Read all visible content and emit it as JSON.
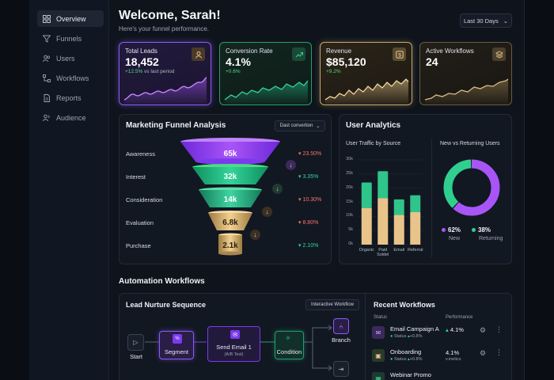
{
  "sidebar": {
    "items": [
      {
        "label": "Overview",
        "icon": "grid-icon"
      },
      {
        "label": "Funnels",
        "icon": "funnel-icon"
      },
      {
        "label": "Users",
        "icon": "users-icon"
      },
      {
        "label": "Workflows",
        "icon": "workflow-icon"
      },
      {
        "label": "Reports",
        "icon": "report-icon"
      },
      {
        "label": "Audience",
        "icon": "audience-icon"
      }
    ]
  },
  "header": {
    "title": "Welcome, Sarah!",
    "subtitle": "Here's your funnel performance.",
    "date_range": "Last 30 Days"
  },
  "kpis": [
    {
      "label": "Total Leads",
      "value": "18,452",
      "delta": "+12.5%",
      "delta_suffix": "vs last period",
      "icon": "user-icon",
      "color": "#8b5cf6"
    },
    {
      "label": "Conversion Rate",
      "value": "4.1%",
      "delta": "+0.6%",
      "delta_suffix": "",
      "icon": "trend-up-icon",
      "color": "#22c58b"
    },
    {
      "label": "Revenue",
      "value": "$85,120",
      "delta": "+9.2%",
      "delta_suffix": "",
      "icon": "dollar-icon",
      "color": "#d8b878"
    },
    {
      "label": "Active Workflows",
      "value": "24",
      "delta": "",
      "delta_suffix": "",
      "icon": "layers-icon",
      "color": "#c9a86a"
    }
  ],
  "funnel": {
    "title": "Marketing Funnel Analysis",
    "dropdown": "Dast convertion",
    "stages": [
      {
        "label": "Awareness",
        "value": "65k",
        "change": "23.50%",
        "direction": "down"
      },
      {
        "label": "Interest",
        "value": "32k",
        "change": "3.35%",
        "direction": "up"
      },
      {
        "label": "Consideration",
        "value": "14k",
        "change": "10.30%",
        "direction": "down"
      },
      {
        "label": "Evaluation",
        "value": "6.8k",
        "change": "8.80%",
        "direction": "down"
      },
      {
        "label": "Purchase",
        "value": "2.1k",
        "change": "2.10%",
        "direction": "up"
      }
    ]
  },
  "analytics": {
    "title": "User Analytics",
    "traffic_title": "User Traffic by Source",
    "donut_title": "New vs Returning Users",
    "new_pct": "62%",
    "new_label": "New",
    "returning_pct": "38%",
    "returning_label": "Returning"
  },
  "chart_data": [
    {
      "type": "bar",
      "title": "User Traffic by Source",
      "categories": [
        "Organic",
        "Paid Soldel",
        "Email",
        "Referral"
      ],
      "yticks": [
        "0k",
        "5k",
        "10k",
        "15k",
        "20k",
        "25k",
        "30k"
      ],
      "ylim": [
        0,
        30
      ],
      "series": [
        {
          "values": [
            13,
            16.5,
            10.5,
            11.5
          ],
          "color": "#e8c48a"
        },
        {
          "values": [
            9,
            9.5,
            5.5,
            6
          ],
          "color": "#2fc48a"
        }
      ]
    },
    {
      "type": "pie",
      "title": "New vs Returning Users",
      "categories": [
        "New",
        "Returning"
      ],
      "values": [
        62,
        38
      ],
      "colors": [
        "#a855f7",
        "#2fd08f"
      ]
    }
  ],
  "automation": {
    "section_title": "Automation Workflows",
    "workflow_title": "Lead Nurture Sequence",
    "badge": "Interactive Workflow",
    "nodes": [
      {
        "label": "Start",
        "sub": ""
      },
      {
        "label": "Segment",
        "sub": ""
      },
      {
        "label": "Send Email 1",
        "sub": "(A/B Test)"
      },
      {
        "label": "Condition",
        "sub": ""
      },
      {
        "label": "Branch",
        "sub": ""
      }
    ]
  },
  "recent": {
    "title": "Recent Workflows",
    "col_status": "Status",
    "col_perf": "Performance",
    "rows": [
      {
        "name": "Email Campaign A",
        "status": "Status",
        "status_delta": "+0.8%",
        "perf": "4.1%",
        "perf_sub": ""
      },
      {
        "name": "Onboarding",
        "status": "Status",
        "status_delta": "+0.8%",
        "perf": "4.1%",
        "perf_sub": "v.inetics"
      },
      {
        "name": "Webinar Promo",
        "status": "",
        "status_delta": "",
        "perf": "",
        "perf_sub": ""
      }
    ]
  }
}
